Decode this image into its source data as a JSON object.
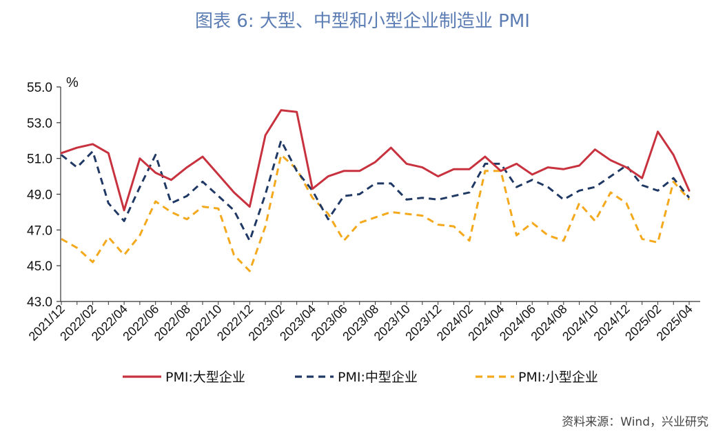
{
  "title": "图表 6:    大型、中型和小型企业制造业 PMI",
  "source": "资料来源：Wind，兴业研究",
  "chart_data": {
    "type": "line",
    "ylabel": "%",
    "ylim": [
      43.0,
      55.0
    ],
    "yticks": [
      "55.0",
      "53.0",
      "51.0",
      "49.0",
      "47.0",
      "45.0",
      "43.0"
    ],
    "x": [
      "2021/12",
      "2022/01",
      "2022/02",
      "2022/03",
      "2022/04",
      "2022/05",
      "2022/06",
      "2022/07",
      "2022/08",
      "2022/09",
      "2022/10",
      "2022/11",
      "2022/12",
      "2023/01",
      "2023/02",
      "2023/03",
      "2023/04",
      "2023/05",
      "2023/06",
      "2023/07",
      "2023/08",
      "2023/09",
      "2023/10",
      "2023/11",
      "2023/12",
      "2024/01",
      "2024/02",
      "2024/03",
      "2024/04",
      "2024/05",
      "2024/06",
      "2024/07",
      "2024/08",
      "2024/09",
      "2024/10",
      "2024/11",
      "2024/12",
      "2025/01",
      "2025/02",
      "2025/03",
      "2025/04"
    ],
    "xtick_labels": [
      "2021/12",
      "2022/02",
      "2022/04",
      "2022/06",
      "2022/08",
      "2022/10",
      "2022/12",
      "2023/02",
      "2023/04",
      "2023/06",
      "2023/08",
      "2023/10",
      "2023/12",
      "2024/02",
      "2024/04",
      "2024/06",
      "2024/08",
      "2024/10",
      "2024/12",
      "2025/02",
      "2025/04"
    ],
    "legend_position": "bottom",
    "series": [
      {
        "name": "PMI:大型企业",
        "color": "#c8313e",
        "dash": "solid",
        "values": [
          51.3,
          51.6,
          51.8,
          51.3,
          48.1,
          51.0,
          50.2,
          49.8,
          50.5,
          51.1,
          50.1,
          49.1,
          48.3,
          52.3,
          53.7,
          53.6,
          49.3,
          50.0,
          50.3,
          50.3,
          50.8,
          51.6,
          50.7,
          50.5,
          50.0,
          50.4,
          50.4,
          51.1,
          50.3,
          50.7,
          50.1,
          50.5,
          50.4,
          50.6,
          51.5,
          50.9,
          50.5,
          49.9,
          52.5,
          51.2,
          49.2
        ]
      },
      {
        "name": "PMI:中型企业",
        "color": "#1f3864",
        "dash": "dashed",
        "values": [
          51.2,
          50.5,
          51.4,
          48.5,
          47.5,
          49.4,
          51.2,
          48.5,
          48.9,
          49.7,
          48.9,
          48.1,
          46.4,
          49.0,
          52.0,
          50.3,
          49.2,
          47.6,
          48.9,
          49.0,
          49.6,
          49.6,
          48.7,
          48.8,
          48.7,
          48.9,
          49.1,
          50.7,
          50.7,
          49.4,
          49.8,
          49.4,
          48.7,
          49.2,
          49.4,
          50.0,
          50.6,
          49.5,
          49.2,
          49.9,
          48.8
        ]
      },
      {
        "name": "PMI:小型企业",
        "color": "#f4a81c",
        "dash": "dashed",
        "values": [
          46.5,
          46.0,
          45.2,
          46.6,
          45.6,
          46.7,
          48.6,
          48.0,
          47.6,
          48.3,
          48.2,
          45.6,
          44.7,
          47.2,
          51.2,
          50.4,
          48.8,
          47.9,
          46.4,
          47.4,
          47.7,
          48.0,
          47.9,
          47.8,
          47.3,
          47.2,
          46.4,
          50.3,
          50.3,
          46.7,
          47.4,
          46.7,
          46.4,
          48.5,
          47.5,
          49.1,
          48.5,
          46.5,
          46.3,
          49.7,
          48.7
        ]
      }
    ]
  }
}
